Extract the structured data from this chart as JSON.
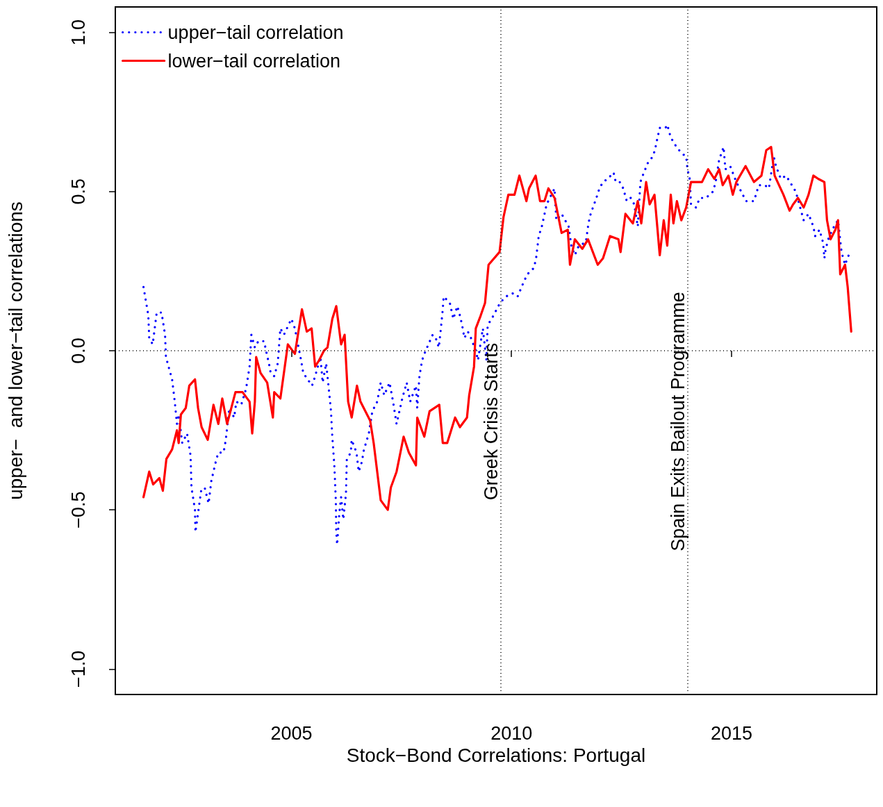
{
  "chart_data": {
    "type": "line",
    "xlabel": "Stock−Bond Correlations: Portugal",
    "ylabel": "upper−  and lower−tail correlations",
    "xlim": [
      2001,
      2018.3
    ],
    "xticks": [
      2005,
      2010,
      2015
    ],
    "ylim": [
      -1.08,
      1.08
    ],
    "yticks": [
      {
        "value": -1,
        "label": "−1.0"
      },
      {
        "value": -0.5,
        "label": "−0.5"
      },
      {
        "value": 0,
        "label": "0.0"
      },
      {
        "value": 0.5,
        "label": "0.5"
      },
      {
        "value": 1,
        "label": "1.0"
      }
    ],
    "grid": false,
    "legend": "top left",
    "marker": "none",
    "ref_lines": [
      {
        "axis": "y",
        "value": 0,
        "label": null,
        "line_style": "dotted",
        "color": "#000000"
      },
      {
        "axis": "x",
        "value": 2009.75,
        "label": "Greek Crisis Starts",
        "line_style": "dotted",
        "color": "#000000"
      },
      {
        "axis": "x",
        "value": 2014.0,
        "label": "Spain Exits Bailout Programme",
        "line_style": "dotted",
        "color": "#000000"
      }
    ],
    "series": [
      {
        "name": "upper−tail correlation",
        "color": "#0000ff",
        "line_style": "dotted",
        "x": [
          2001.64,
          2001.69,
          2001.75,
          2001.77,
          2001.85,
          2001.94,
          2002.05,
          2002.13,
          2002.15,
          2002.21,
          2002.29,
          2002.35,
          2002.4,
          2002.44,
          2002.52,
          2002.63,
          2002.71,
          2002.73,
          2002.81,
          2002.82,
          2002.95,
          2003.03,
          2003.12,
          2003.18,
          2003.28,
          2003.34,
          2003.46,
          2003.51,
          2003.59,
          2003.7,
          2003.75,
          2003.86,
          2003.97,
          2004.05,
          2004.09,
          2004.17,
          2004.25,
          2004.38,
          2004.44,
          2004.49,
          2004.53,
          2004.61,
          2004.69,
          2004.75,
          2004.83,
          2005.0,
          2005.08,
          2005.22,
          2005.27,
          2005.32,
          2005.47,
          2005.54,
          2005.66,
          2005.71,
          2005.79,
          2005.85,
          2005.9,
          2005.93,
          2005.98,
          2006.01,
          2006.02,
          2006.04,
          2006.09,
          2006.13,
          2006.18,
          2006.24,
          2006.26,
          2006.35,
          2006.37,
          2006.48,
          2006.53,
          2006.6,
          2006.65,
          2006.76,
          2006.84,
          2006.95,
          2007.03,
          2007.11,
          2007.23,
          2007.31,
          2007.39,
          2007.52,
          2007.62,
          2007.7,
          2007.83,
          2007.86,
          2007.91,
          2007.97,
          2008.05,
          2008.21,
          2008.28,
          2008.35,
          2008.39,
          2008.44,
          2008.46,
          2008.6,
          2008.68,
          2008.77,
          2008.83,
          2008.88,
          2008.93,
          2009.01,
          2009.08,
          2009.19,
          2009.24,
          2009.35,
          2009.43,
          2009.46,
          2009.59,
          2009.74,
          2009.87,
          2010.03,
          2010.14,
          2010.26,
          2010.36,
          2010.51,
          2010.56,
          2010.62,
          2010.69,
          2010.8,
          2010.98,
          2011.02,
          2011.14,
          2011.3,
          2011.36,
          2011.44,
          2011.53,
          2011.69,
          2011.75,
          2011.8,
          2011.93,
          2012.0,
          2012.08,
          2012.19,
          2012.32,
          2012.37,
          2012.46,
          2012.54,
          2012.62,
          2012.71,
          2012.79,
          2012.87,
          2012.93,
          2013.01,
          2013.1,
          2013.21,
          2013.26,
          2013.32,
          2013.37,
          2013.5,
          2013.54,
          2013.62,
          2013.75,
          2013.87,
          2013.97,
          2014.0,
          2014.05,
          2014.08,
          2014.19,
          2014.28,
          2014.42,
          2014.58,
          2014.64,
          2014.72,
          2014.82,
          2014.86,
          2014.97,
          2015.11,
          2015.33,
          2015.51,
          2015.62,
          2015.76,
          2015.85,
          2015.96,
          2016.01,
          2016.12,
          2016.24,
          2016.46,
          2016.64,
          2016.75,
          2016.86,
          2016.9,
          2017.0,
          2017.08,
          2017.11,
          2017.14,
          2017.22,
          2017.33,
          2017.42,
          2017.5,
          2017.58,
          2017.69
        ],
        "values": [
          0.2,
          0.16,
          0.11,
          0.04,
          0.02,
          0.12,
          0.12,
          0.05,
          -0.02,
          -0.05,
          -0.09,
          -0.16,
          -0.23,
          -0.2,
          -0.29,
          -0.26,
          -0.33,
          -0.43,
          -0.5,
          -0.57,
          -0.44,
          -0.43,
          -0.48,
          -0.41,
          -0.35,
          -0.32,
          -0.32,
          -0.28,
          -0.18,
          -0.21,
          -0.16,
          -0.17,
          -0.12,
          -0.05,
          0.05,
          0.01,
          0.03,
          0.03,
          -0.01,
          -0.04,
          -0.07,
          -0.08,
          -0.04,
          0.07,
          0.05,
          0.1,
          0.07,
          -0.03,
          -0.07,
          -0.08,
          -0.11,
          -0.08,
          -0.02,
          -0.1,
          -0.04,
          -0.12,
          -0.19,
          -0.27,
          -0.37,
          -0.47,
          -0.57,
          -0.61,
          -0.51,
          -0.46,
          -0.53,
          -0.45,
          -0.34,
          -0.32,
          -0.28,
          -0.32,
          -0.38,
          -0.35,
          -0.31,
          -0.26,
          -0.19,
          -0.16,
          -0.1,
          -0.14,
          -0.1,
          -0.16,
          -0.23,
          -0.15,
          -0.1,
          -0.16,
          -0.11,
          -0.18,
          -0.08,
          -0.03,
          0.0,
          0.05,
          0.04,
          0.01,
          0.06,
          0.13,
          0.17,
          0.15,
          0.1,
          0.14,
          0.11,
          0.08,
          0.04,
          0.06,
          0.04,
          0.0,
          -0.03,
          0.07,
          -0.03,
          0.08,
          0.11,
          0.15,
          0.17,
          0.18,
          0.17,
          0.21,
          0.24,
          0.26,
          0.29,
          0.36,
          0.39,
          0.46,
          0.51,
          0.41,
          0.43,
          0.39,
          0.33,
          0.3,
          0.33,
          0.34,
          0.4,
          0.43,
          0.48,
          0.51,
          0.53,
          0.54,
          0.56,
          0.53,
          0.53,
          0.51,
          0.47,
          0.48,
          0.46,
          0.39,
          0.53,
          0.56,
          0.59,
          0.61,
          0.63,
          0.67,
          0.7,
          0.7,
          0.71,
          0.67,
          0.64,
          0.62,
          0.61,
          0.57,
          0.54,
          0.46,
          0.45,
          0.48,
          0.48,
          0.5,
          0.53,
          0.6,
          0.64,
          0.57,
          0.58,
          0.53,
          0.47,
          0.47,
          0.52,
          0.52,
          0.51,
          0.61,
          0.58,
          0.54,
          0.55,
          0.5,
          0.41,
          0.43,
          0.39,
          0.36,
          0.38,
          0.34,
          0.29,
          0.32,
          0.36,
          0.39,
          0.41,
          0.31,
          0.27,
          0.31
        ]
      },
      {
        "name": "lower−tail correlation",
        "color": "#ff0000",
        "line_style": "solid",
        "x": [
          2001.64,
          2001.77,
          2001.86,
          2002.0,
          2002.08,
          2002.16,
          2002.29,
          2002.4,
          2002.44,
          2002.49,
          2002.6,
          2002.68,
          2002.81,
          2002.88,
          2002.96,
          2003.1,
          2003.23,
          2003.34,
          2003.43,
          2003.54,
          2003.73,
          2003.89,
          2004.05,
          2004.11,
          2004.17,
          2004.2,
          2004.3,
          2004.45,
          2004.58,
          2004.61,
          2004.75,
          2004.85,
          2004.92,
          2005.08,
          2005.24,
          2005.35,
          2005.46,
          2005.54,
          2005.63,
          2005.74,
          2005.82,
          2005.93,
          2006.02,
          2006.13,
          2006.21,
          2006.29,
          2006.37,
          2006.49,
          2006.57,
          2006.79,
          2006.87,
          2007.03,
          2007.19,
          2007.26,
          2007.39,
          2007.55,
          2007.67,
          2007.83,
          2007.86,
          2008.02,
          2008.14,
          2008.36,
          2008.44,
          2008.54,
          2008.72,
          2008.83,
          2008.99,
          2009.04,
          2009.15,
          2009.19,
          2009.3,
          2009.4,
          2009.48,
          2009.73,
          2009.82,
          2009.93,
          2010.07,
          2010.18,
          2010.34,
          2010.4,
          2010.55,
          2010.65,
          2010.75,
          2010.84,
          2010.98,
          2011.14,
          2011.28,
          2011.33,
          2011.44,
          2011.61,
          2011.74,
          2011.96,
          2012.08,
          2012.24,
          2012.43,
          2012.48,
          2012.59,
          2012.76,
          2012.87,
          2012.95,
          2013.06,
          2013.14,
          2013.25,
          2013.37,
          2013.46,
          2013.54,
          2013.62,
          2013.68,
          2013.76,
          2013.86,
          2013.97,
          2014.08,
          2014.33,
          2014.47,
          2014.61,
          2014.72,
          2014.8,
          2014.93,
          2015.03,
          2015.11,
          2015.32,
          2015.51,
          2015.68,
          2015.79,
          2015.9,
          2015.98,
          2016.18,
          2016.32,
          2016.4,
          2016.51,
          2016.64,
          2016.75,
          2016.86,
          2016.97,
          2017.11,
          2017.17,
          2017.25,
          2017.36,
          2017.42,
          2017.47,
          2017.58,
          2017.64,
          2017.72
        ],
        "values": [
          -0.46,
          -0.38,
          -0.42,
          -0.4,
          -0.44,
          -0.34,
          -0.31,
          -0.25,
          -0.29,
          -0.2,
          -0.18,
          -0.11,
          -0.09,
          -0.18,
          -0.24,
          -0.28,
          -0.17,
          -0.23,
          -0.15,
          -0.23,
          -0.13,
          -0.13,
          -0.16,
          -0.26,
          -0.16,
          -0.02,
          -0.07,
          -0.1,
          -0.21,
          -0.13,
          -0.15,
          -0.05,
          0.02,
          -0.01,
          0.13,
          0.06,
          0.07,
          -0.05,
          -0.03,
          0.0,
          0.01,
          0.1,
          0.14,
          0.02,
          0.05,
          -0.16,
          -0.21,
          -0.11,
          -0.16,
          -0.22,
          -0.29,
          -0.47,
          -0.5,
          -0.43,
          -0.38,
          -0.27,
          -0.32,
          -0.36,
          -0.21,
          -0.27,
          -0.19,
          -0.17,
          -0.29,
          -0.29,
          -0.21,
          -0.24,
          -0.21,
          -0.14,
          -0.05,
          0.07,
          0.11,
          0.15,
          0.27,
          0.31,
          0.42,
          0.49,
          0.49,
          0.55,
          0.47,
          0.51,
          0.55,
          0.47,
          0.47,
          0.51,
          0.48,
          0.37,
          0.38,
          0.27,
          0.35,
          0.32,
          0.35,
          0.27,
          0.29,
          0.36,
          0.35,
          0.31,
          0.43,
          0.4,
          0.47,
          0.4,
          0.53,
          0.46,
          0.49,
          0.3,
          0.41,
          0.33,
          0.49,
          0.4,
          0.47,
          0.41,
          0.45,
          0.53,
          0.53,
          0.57,
          0.54,
          0.57,
          0.52,
          0.55,
          0.49,
          0.53,
          0.58,
          0.53,
          0.55,
          0.63,
          0.64,
          0.55,
          0.49,
          0.44,
          0.46,
          0.48,
          0.45,
          0.49,
          0.55,
          0.54,
          0.53,
          0.41,
          0.35,
          0.38,
          0.41,
          0.24,
          0.27,
          0.2,
          0.06
        ]
      }
    ]
  }
}
